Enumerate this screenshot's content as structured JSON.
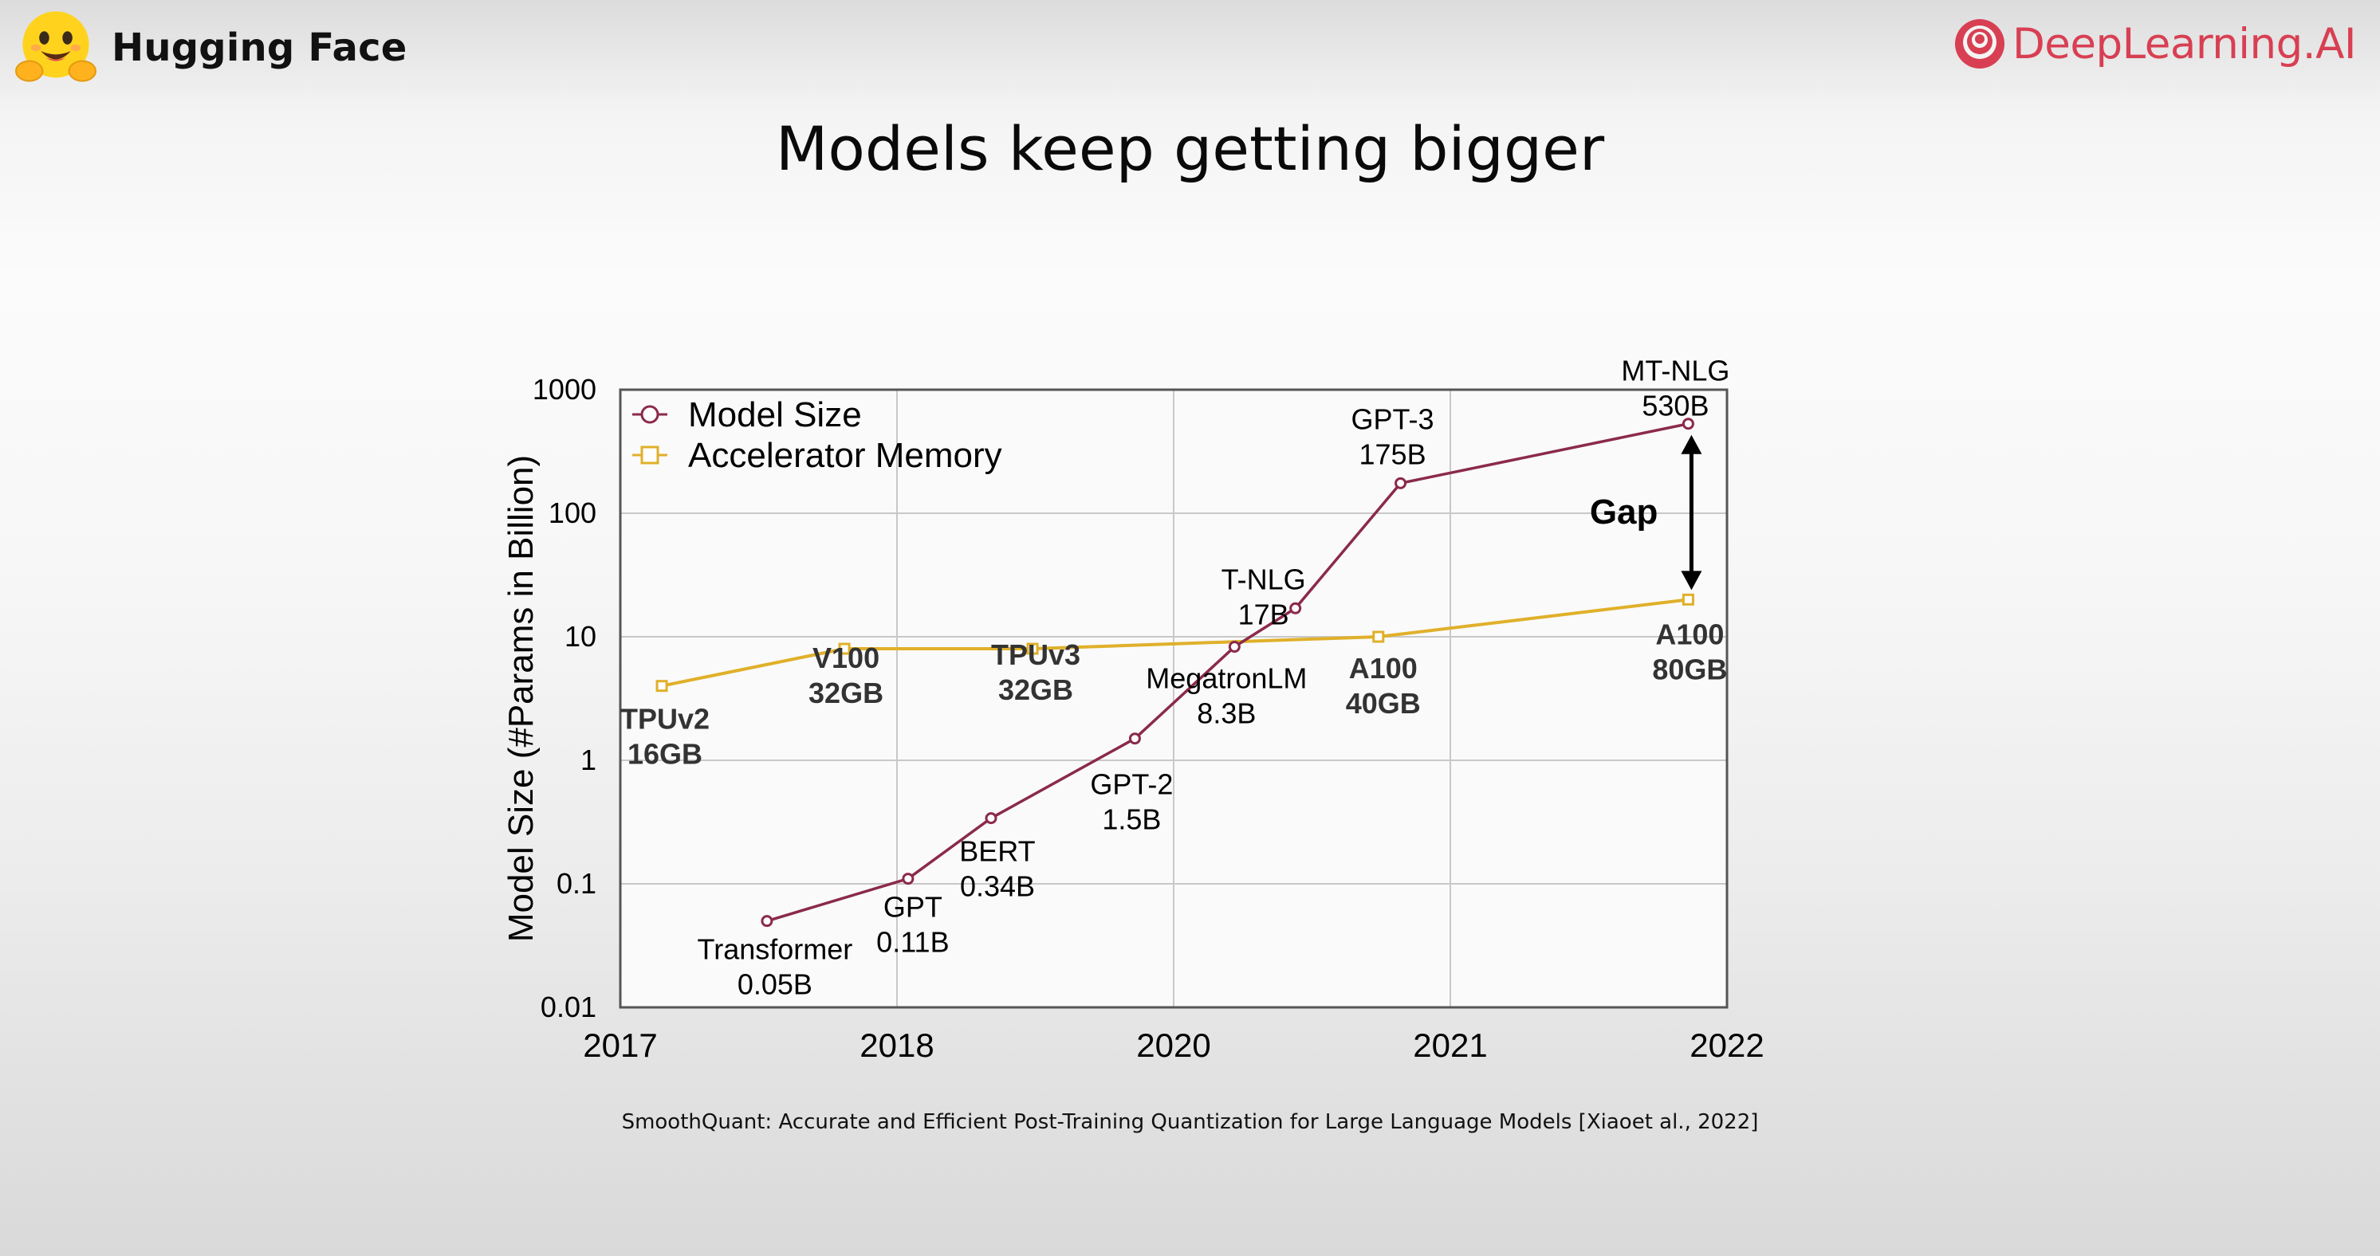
{
  "header": {
    "left_logo_text": "Hugging Face",
    "right_logo_text": "DeepLearning.AI",
    "left_logo_icon": "hugging-face-emoji-icon",
    "right_logo_icon": "deeplearning-ai-icon"
  },
  "slide": {
    "title": "Models keep getting bigger",
    "citation": "SmoothQuant: Accurate and Efficient Post-Training Quantization for Large Language Models [Xiaoet al., 2022]"
  },
  "colors": {
    "model_size": "#8b2a4a",
    "accelerator_memory": "#e0b02a",
    "brand_dl": "#d83f52"
  },
  "chart_data": {
    "type": "line",
    "ylabel": "Model Size (#Params in Billion)",
    "y_scale": "log",
    "ylim": [
      0.01,
      1000
    ],
    "y_ticks": [
      "1000",
      "100",
      "10",
      "1",
      "0.1",
      "0.01"
    ],
    "x_ticks": [
      "2017",
      "2018",
      "2020",
      "2021",
      "2022"
    ],
    "grid": true,
    "legend_position": "top-left",
    "series": [
      {
        "name": "Model Size",
        "marker": "circle",
        "points": [
          {
            "x": 0.53,
            "y": 0.05,
            "label": [
              "Transformer",
              "0.05B"
            ]
          },
          {
            "x": 1.04,
            "y": 0.11,
            "label": [
              "GPT",
              "0.11B"
            ]
          },
          {
            "x": 1.34,
            "y": 0.34,
            "label": [
              "BERT",
              "0.34B"
            ]
          },
          {
            "x": 1.86,
            "y": 1.5,
            "label": [
              "GPT-2",
              "1.5B"
            ]
          },
          {
            "x": 2.22,
            "y": 8.3,
            "label": [
              "MegatronLM",
              "8.3B"
            ]
          },
          {
            "x": 2.44,
            "y": 17,
            "label": [
              "T-NLG",
              "17B"
            ]
          },
          {
            "x": 2.82,
            "y": 175,
            "label": [
              "GPT-3",
              "175B"
            ]
          },
          {
            "x": 3.86,
            "y": 530,
            "label": [
              "MT-NLG",
              "530B"
            ]
          }
        ]
      },
      {
        "name": "Accelerator Memory",
        "marker": "square",
        "points": [
          {
            "x": 0.15,
            "y": 4,
            "label": [
              "TPUv2",
              "16GB"
            ]
          },
          {
            "x": 0.81,
            "y": 8,
            "label": [
              "V100",
              "32GB"
            ]
          },
          {
            "x": 1.49,
            "y": 8,
            "label": [
              "TPUv3",
              "32GB"
            ]
          },
          {
            "x": 2.74,
            "y": 10,
            "label": [
              "A100",
              "40GB"
            ]
          },
          {
            "x": 3.86,
            "y": 20,
            "label": [
              "A100",
              "80GB"
            ]
          }
        ]
      }
    ],
    "annotations": [
      {
        "text": "Gap",
        "between": [
          "MT-NLG",
          "A100 80GB"
        ]
      }
    ]
  }
}
